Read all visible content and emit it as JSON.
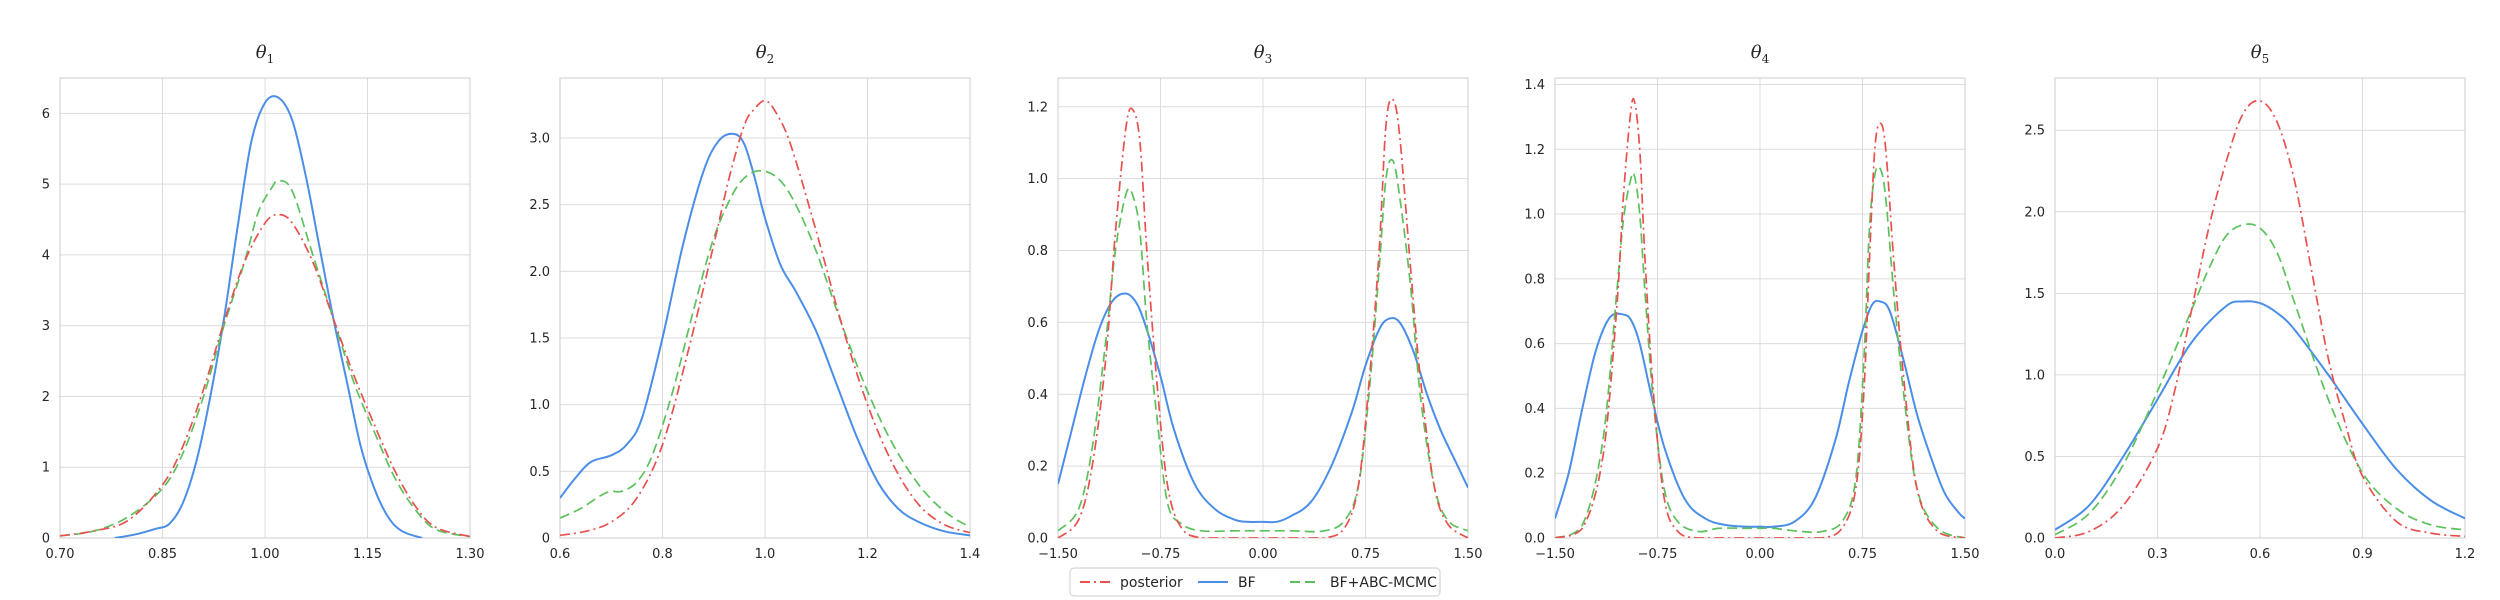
{
  "legend": {
    "placement": "bottom-center",
    "items": [
      {
        "key": "posterior",
        "label": "posterior",
        "color": "#e8514f",
        "dash": "dashdot"
      },
      {
        "key": "bf",
        "label": "BF",
        "color": "#4a8ee8",
        "dash": "solid"
      },
      {
        "key": "bfabc",
        "label": "BF+ABC-MCMC",
        "color": "#5cc15c",
        "dash": "dashed"
      }
    ]
  },
  "chart_data": [
    {
      "type": "line",
      "title": "θ1",
      "title_base": "θ",
      "title_sub": "1",
      "xlim": [
        0.7,
        1.3
      ],
      "ylim": [
        0,
        6.5
      ],
      "xticks": [
        0.7,
        0.85,
        1.0,
        1.15,
        1.3
      ],
      "xtick_labels": [
        "0.70",
        "0.85",
        "1.00",
        "1.15",
        "1.30"
      ],
      "yticks": [
        0,
        1,
        2,
        3,
        4,
        5,
        6
      ],
      "ytick_labels": [
        "0",
        "1",
        "2",
        "3",
        "4",
        "5",
        "6"
      ],
      "grid": true,
      "series": [
        {
          "key": "posterior",
          "x": [
            0.7,
            0.75,
            0.8,
            0.85,
            0.88,
            0.91,
            0.94,
            0.97,
            1.0,
            1.02,
            1.04,
            1.07,
            1.1,
            1.13,
            1.16,
            1.19,
            1.22,
            1.25,
            1.3
          ],
          "y": [
            0.03,
            0.1,
            0.25,
            0.75,
            1.3,
            2.1,
            3.05,
            3.9,
            4.45,
            4.57,
            4.45,
            3.9,
            3.1,
            2.3,
            1.6,
            0.95,
            0.45,
            0.15,
            0.02
          ]
        },
        {
          "key": "bf",
          "x": [
            0.78,
            0.81,
            0.84,
            0.86,
            0.88,
            0.9,
            0.92,
            0.94,
            0.96,
            0.98,
            1.0,
            1.02,
            1.04,
            1.06,
            1.08,
            1.1,
            1.12,
            1.14,
            1.16,
            1.18,
            1.2,
            1.23
          ],
          "y": [
            0.0,
            0.05,
            0.13,
            0.2,
            0.5,
            1.1,
            2.0,
            3.1,
            4.4,
            5.6,
            6.15,
            6.22,
            5.9,
            5.1,
            4.1,
            3.1,
            2.2,
            1.3,
            0.7,
            0.3,
            0.1,
            0.0
          ]
        },
        {
          "key": "bfabc",
          "x": [
            0.7,
            0.75,
            0.8,
            0.85,
            0.88,
            0.91,
            0.94,
            0.97,
            0.99,
            1.01,
            1.02,
            1.04,
            1.07,
            1.1,
            1.13,
            1.16,
            1.19,
            1.22,
            1.25,
            1.3
          ],
          "y": [
            0.03,
            0.1,
            0.3,
            0.7,
            1.2,
            2.0,
            3.0,
            3.9,
            4.6,
            4.95,
            5.05,
            4.9,
            4.0,
            3.1,
            2.2,
            1.5,
            0.85,
            0.4,
            0.12,
            0.02
          ]
        }
      ]
    },
    {
      "type": "line",
      "title": "θ2",
      "title_base": "θ",
      "title_sub": "2",
      "xlim": [
        0.6,
        1.4
      ],
      "ylim": [
        0,
        3.45
      ],
      "xticks": [
        0.6,
        0.8,
        1.0,
        1.2,
        1.4
      ],
      "xtick_labels": [
        "0.6",
        "0.8",
        "1.0",
        "1.2",
        "1.4"
      ],
      "yticks": [
        0,
        0.5,
        1.0,
        1.5,
        2.0,
        2.5,
        3.0
      ],
      "ytick_labels": [
        "0",
        "0.5",
        "1.0",
        "1.5",
        "2.0",
        "2.5",
        "3.0"
      ],
      "grid": true,
      "series": [
        {
          "key": "posterior",
          "x": [
            0.6,
            0.65,
            0.7,
            0.75,
            0.8,
            0.85,
            0.9,
            0.93,
            0.96,
            0.98,
            1.0,
            1.02,
            1.05,
            1.1,
            1.15,
            1.2,
            1.25,
            1.3,
            1.35,
            1.4
          ],
          "y": [
            0.02,
            0.05,
            0.12,
            0.3,
            0.7,
            1.4,
            2.2,
            2.7,
            3.1,
            3.22,
            3.28,
            3.2,
            2.95,
            2.3,
            1.6,
            1.0,
            0.55,
            0.25,
            0.1,
            0.04
          ]
        },
        {
          "key": "bf",
          "x": [
            0.6,
            0.63,
            0.66,
            0.7,
            0.73,
            0.76,
            0.8,
            0.84,
            0.88,
            0.91,
            0.94,
            0.96,
            0.98,
            1.0,
            1.03,
            1.06,
            1.1,
            1.14,
            1.18,
            1.22,
            1.26,
            1.3,
            1.35,
            1.4
          ],
          "y": [
            0.3,
            0.45,
            0.57,
            0.62,
            0.7,
            0.9,
            1.5,
            2.2,
            2.75,
            2.98,
            3.03,
            2.95,
            2.7,
            2.4,
            2.05,
            1.85,
            1.55,
            1.15,
            0.75,
            0.42,
            0.22,
            0.12,
            0.05,
            0.02
          ]
        },
        {
          "key": "bfabc",
          "x": [
            0.6,
            0.64,
            0.68,
            0.7,
            0.72,
            0.75,
            0.78,
            0.82,
            0.86,
            0.9,
            0.94,
            0.97,
            1.0,
            1.03,
            1.06,
            1.1,
            1.15,
            1.2,
            1.25,
            1.3,
            1.35,
            1.4
          ],
          "y": [
            0.15,
            0.22,
            0.32,
            0.35,
            0.35,
            0.42,
            0.62,
            1.1,
            1.7,
            2.25,
            2.6,
            2.73,
            2.75,
            2.68,
            2.5,
            2.15,
            1.6,
            1.1,
            0.7,
            0.4,
            0.2,
            0.08
          ]
        }
      ]
    },
    {
      "type": "line",
      "title": "θ3",
      "title_base": "θ",
      "title_sub": "3",
      "xlim": [
        -1.5,
        1.5
      ],
      "ylim": [
        0,
        1.28
      ],
      "xticks": [
        -1.5,
        -0.75,
        0.0,
        0.75,
        1.5
      ],
      "xtick_labels": [
        "−1.50",
        "−0.75",
        "0.00",
        "0.75",
        "1.50"
      ],
      "yticks": [
        0,
        0.2,
        0.4,
        0.6,
        0.8,
        1.0,
        1.2
      ],
      "ytick_labels": [
        "0.0",
        "0.2",
        "0.4",
        "0.6",
        "0.8",
        "1.0",
        "1.2"
      ],
      "grid": true,
      "series": [
        {
          "key": "posterior",
          "x": [
            -1.5,
            -1.35,
            -1.25,
            -1.15,
            -1.08,
            -1.0,
            -0.95,
            -0.9,
            -0.85,
            -0.78,
            -0.7,
            -0.6,
            -0.45,
            -0.2,
            0.0,
            0.2,
            0.45,
            0.6,
            0.7,
            0.78,
            0.85,
            0.9,
            0.95,
            1.0,
            1.08,
            1.15,
            1.25,
            1.35,
            1.5
          ],
          "y": [
            0.0,
            0.05,
            0.2,
            0.5,
            0.85,
            1.15,
            1.19,
            1.1,
            0.8,
            0.45,
            0.15,
            0.03,
            0.0,
            0.0,
            0.0,
            0.0,
            0.0,
            0.03,
            0.15,
            0.45,
            0.8,
            1.15,
            1.22,
            1.12,
            0.75,
            0.45,
            0.15,
            0.04,
            0.0
          ]
        },
        {
          "key": "bf",
          "x": [
            -1.5,
            -1.4,
            -1.3,
            -1.2,
            -1.1,
            -1.0,
            -0.92,
            -0.85,
            -0.75,
            -0.65,
            -0.5,
            -0.35,
            -0.2,
            -0.1,
            0.0,
            0.1,
            0.2,
            0.35,
            0.5,
            0.65,
            0.75,
            0.85,
            0.92,
            1.0,
            1.1,
            1.2,
            1.3,
            1.4,
            1.5
          ],
          "y": [
            0.15,
            0.3,
            0.45,
            0.58,
            0.66,
            0.68,
            0.65,
            0.58,
            0.45,
            0.3,
            0.15,
            0.08,
            0.05,
            0.045,
            0.045,
            0.045,
            0.06,
            0.1,
            0.2,
            0.35,
            0.48,
            0.58,
            0.61,
            0.6,
            0.52,
            0.4,
            0.3,
            0.22,
            0.14
          ]
        },
        {
          "key": "bfabc",
          "x": [
            -1.5,
            -1.35,
            -1.25,
            -1.15,
            -1.08,
            -1.0,
            -0.95,
            -0.9,
            -0.85,
            -0.78,
            -0.7,
            -0.6,
            -0.45,
            -0.2,
            0.0,
            0.2,
            0.45,
            0.6,
            0.7,
            0.78,
            0.85,
            0.9,
            0.95,
            1.0,
            1.08,
            1.15,
            1.25,
            1.35,
            1.5
          ],
          "y": [
            0.02,
            0.08,
            0.25,
            0.55,
            0.8,
            0.96,
            0.95,
            0.85,
            0.6,
            0.35,
            0.1,
            0.04,
            0.02,
            0.02,
            0.02,
            0.02,
            0.02,
            0.05,
            0.15,
            0.42,
            0.75,
            1.0,
            1.05,
            0.95,
            0.7,
            0.4,
            0.15,
            0.05,
            0.02
          ]
        }
      ]
    },
    {
      "type": "line",
      "title": "θ4",
      "title_base": "θ",
      "title_sub": "4",
      "xlim": [
        -1.5,
        1.5
      ],
      "ylim": [
        0,
        1.42
      ],
      "xticks": [
        -1.5,
        -0.75,
        0.0,
        0.75,
        1.5
      ],
      "xtick_labels": [
        "−1.50",
        "−0.75",
        "0.00",
        "0.75",
        "1.50"
      ],
      "yticks": [
        0,
        0.2,
        0.4,
        0.6,
        0.8,
        1.0,
        1.2,
        1.4
      ],
      "ytick_labels": [
        "0.0",
        "0.2",
        "0.4",
        "0.6",
        "0.8",
        "1.0",
        "1.2",
        "1.4"
      ],
      "grid": true,
      "series": [
        {
          "key": "posterior",
          "x": [
            -1.5,
            -1.3,
            -1.15,
            -1.05,
            -1.0,
            -0.95,
            -0.92,
            -0.88,
            -0.84,
            -0.78,
            -0.7,
            -0.6,
            -0.45,
            -0.2,
            0.0,
            0.2,
            0.45,
            0.6,
            0.7,
            0.76,
            0.8,
            0.84,
            0.88,
            0.92,
            0.98,
            1.05,
            1.15,
            1.3,
            1.5
          ],
          "y": [
            0.0,
            0.03,
            0.25,
            0.7,
            1.05,
            1.3,
            1.35,
            1.2,
            0.85,
            0.45,
            0.12,
            0.02,
            0.0,
            0.0,
            0.0,
            0.0,
            0.0,
            0.03,
            0.15,
            0.45,
            0.85,
            1.2,
            1.28,
            1.2,
            0.85,
            0.5,
            0.15,
            0.02,
            0.0
          ]
        },
        {
          "key": "bf",
          "x": [
            -1.5,
            -1.4,
            -1.3,
            -1.2,
            -1.1,
            -1.0,
            -0.94,
            -0.88,
            -0.8,
            -0.7,
            -0.55,
            -0.4,
            -0.25,
            -0.1,
            0.0,
            0.1,
            0.25,
            0.4,
            0.55,
            0.65,
            0.75,
            0.82,
            0.88,
            0.95,
            1.05,
            1.15,
            1.25,
            1.35,
            1.45,
            1.5
          ],
          "y": [
            0.06,
            0.2,
            0.4,
            0.58,
            0.68,
            0.69,
            0.67,
            0.6,
            0.45,
            0.28,
            0.12,
            0.06,
            0.04,
            0.035,
            0.035,
            0.035,
            0.05,
            0.12,
            0.3,
            0.48,
            0.64,
            0.72,
            0.73,
            0.7,
            0.55,
            0.38,
            0.25,
            0.14,
            0.08,
            0.06
          ]
        },
        {
          "key": "bfabc",
          "x": [
            -1.5,
            -1.3,
            -1.15,
            -1.05,
            -1.0,
            -0.95,
            -0.92,
            -0.88,
            -0.84,
            -0.78,
            -0.7,
            -0.6,
            -0.45,
            -0.3,
            -0.1,
            0.0,
            0.1,
            0.3,
            0.45,
            0.6,
            0.7,
            0.76,
            0.8,
            0.84,
            0.88,
            0.92,
            0.98,
            1.05,
            1.15,
            1.3,
            1.5
          ],
          "y": [
            0.0,
            0.04,
            0.3,
            0.75,
            0.98,
            1.1,
            1.12,
            1.0,
            0.75,
            0.42,
            0.15,
            0.05,
            0.02,
            0.03,
            0.03,
            0.03,
            0.03,
            0.02,
            0.02,
            0.05,
            0.18,
            0.55,
            0.95,
            1.12,
            1.14,
            1.05,
            0.75,
            0.45,
            0.15,
            0.03,
            0.0
          ]
        }
      ]
    },
    {
      "type": "line",
      "title": "θ5",
      "title_base": "θ",
      "title_sub": "5",
      "xlim": [
        0.0,
        1.2
      ],
      "ylim": [
        0,
        2.82
      ],
      "xticks": [
        0.0,
        0.3,
        0.6,
        0.9,
        1.2
      ],
      "xtick_labels": [
        "0.0",
        "0.3",
        "0.6",
        "0.9",
        "1.2"
      ],
      "yticks": [
        0,
        0.5,
        1.0,
        1.5,
        2.0,
        2.5
      ],
      "ytick_labels": [
        "0.0",
        "0.5",
        "1.0",
        "1.5",
        "2.0",
        "2.5"
      ],
      "grid": true,
      "series": [
        {
          "key": "posterior",
          "x": [
            0.0,
            0.1,
            0.2,
            0.3,
            0.35,
            0.4,
            0.45,
            0.5,
            0.55,
            0.6,
            0.65,
            0.7,
            0.75,
            0.8,
            0.85,
            0.9,
            1.0,
            1.1,
            1.2
          ],
          "y": [
            0.0,
            0.04,
            0.2,
            0.55,
            0.9,
            1.4,
            1.9,
            2.3,
            2.6,
            2.68,
            2.55,
            2.2,
            1.65,
            1.1,
            0.7,
            0.38,
            0.1,
            0.03,
            0.01
          ]
        },
        {
          "key": "bf",
          "x": [
            0.0,
            0.1,
            0.2,
            0.3,
            0.4,
            0.5,
            0.55,
            0.6,
            0.65,
            0.7,
            0.8,
            0.9,
            1.0,
            1.1,
            1.2
          ],
          "y": [
            0.05,
            0.2,
            0.5,
            0.85,
            1.2,
            1.42,
            1.45,
            1.44,
            1.38,
            1.28,
            1.0,
            0.7,
            0.42,
            0.23,
            0.12
          ]
        },
        {
          "key": "bfabc",
          "x": [
            0.0,
            0.1,
            0.2,
            0.3,
            0.4,
            0.45,
            0.5,
            0.55,
            0.6,
            0.65,
            0.7,
            0.8,
            0.9,
            1.0,
            1.1,
            1.2
          ],
          "y": [
            0.02,
            0.15,
            0.45,
            0.9,
            1.4,
            1.65,
            1.85,
            1.92,
            1.9,
            1.75,
            1.45,
            0.85,
            0.4,
            0.18,
            0.08,
            0.05
          ]
        }
      ]
    }
  ]
}
